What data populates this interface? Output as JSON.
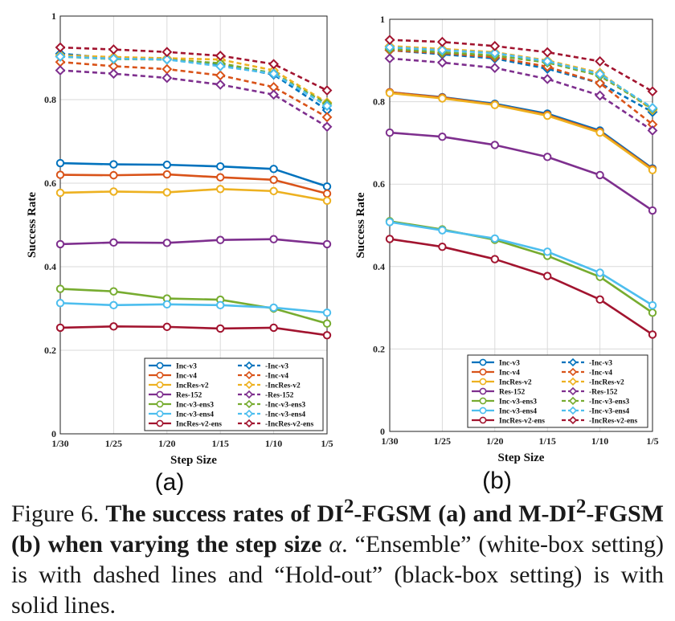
{
  "chart_data": [
    {
      "type": "line",
      "panel_label": "(a)",
      "xlabel": "Step Size",
      "ylabel": "Success Rate",
      "categories": [
        "1/30",
        "1/25",
        "1/20",
        "1/15",
        "1/10",
        "1/5"
      ],
      "ylim": [
        0,
        1
      ],
      "yticks": [
        "0",
        "0.2",
        "0.4",
        "0.6",
        "0.8",
        "1"
      ],
      "grid": true,
      "legend_position": "bottom-right",
      "series": [
        {
          "name": "Inc-v3",
          "group": "hold-out",
          "color": "#0072BD",
          "values": [
            0.648,
            0.645,
            0.644,
            0.64,
            0.634,
            0.592
          ]
        },
        {
          "name": "Inc-v4",
          "group": "hold-out",
          "color": "#D95319",
          "values": [
            0.62,
            0.619,
            0.621,
            0.614,
            0.608,
            0.575
          ]
        },
        {
          "name": "IncRes-v2",
          "group": "hold-out",
          "color": "#EDB120",
          "values": [
            0.577,
            0.58,
            0.578,
            0.586,
            0.581,
            0.558
          ]
        },
        {
          "name": "Res-152",
          "group": "hold-out",
          "color": "#7E2F8E",
          "values": [
            0.454,
            0.458,
            0.457,
            0.464,
            0.466,
            0.454
          ]
        },
        {
          "name": "Inc-v3-ens3",
          "group": "hold-out",
          "color": "#77AC30",
          "values": [
            0.347,
            0.341,
            0.324,
            0.321,
            0.3,
            0.264
          ]
        },
        {
          "name": "Inc-v3-ens4",
          "group": "hold-out",
          "color": "#4DBEEE",
          "values": [
            0.313,
            0.308,
            0.31,
            0.308,
            0.302,
            0.29
          ]
        },
        {
          "name": "IncRes-v2-ens",
          "group": "hold-out",
          "color": "#A2142F",
          "values": [
            0.254,
            0.257,
            0.256,
            0.252,
            0.254,
            0.236
          ]
        },
        {
          "name": "-Inc-v3",
          "group": "ensemble",
          "color": "#0072BD",
          "values": [
            0.91,
            0.899,
            0.896,
            0.884,
            0.86,
            0.775
          ]
        },
        {
          "name": "-Inc-v4",
          "group": "ensemble",
          "color": "#D95319",
          "values": [
            0.89,
            0.88,
            0.873,
            0.858,
            0.83,
            0.758
          ]
        },
        {
          "name": "-IncRes-v2",
          "group": "ensemble",
          "color": "#EDB120",
          "values": [
            0.906,
            0.902,
            0.899,
            0.896,
            0.87,
            0.793
          ]
        },
        {
          "name": "-Res-152",
          "group": "ensemble",
          "color": "#7E2F8E",
          "values": [
            0.87,
            0.862,
            0.852,
            0.836,
            0.812,
            0.735
          ]
        },
        {
          "name": "-Inc-v3-ens3",
          "group": "ensemble",
          "color": "#77AC30",
          "values": [
            0.903,
            0.897,
            0.896,
            0.887,
            0.863,
            0.79
          ]
        },
        {
          "name": "-Inc-v3-ens4",
          "group": "ensemble",
          "color": "#4DBEEE",
          "values": [
            0.903,
            0.898,
            0.896,
            0.88,
            0.862,
            0.785
          ]
        },
        {
          "name": "-IncRes-v2-ens",
          "group": "ensemble",
          "color": "#A2142F",
          "values": [
            0.925,
            0.92,
            0.914,
            0.905,
            0.885,
            0.822
          ]
        }
      ]
    },
    {
      "type": "line",
      "panel_label": "(b)",
      "xlabel": "Step Size",
      "ylabel": "Success Rate",
      "categories": [
        "1/30",
        "1/25",
        "1/20",
        "1/15",
        "1/10",
        "1/5"
      ],
      "ylim": [
        0,
        1
      ],
      "yticks": [
        "0",
        "0.2",
        "0.4",
        "0.6",
        "0.8",
        "1"
      ],
      "grid": true,
      "legend_position": "bottom-right",
      "series": [
        {
          "name": "Inc-v3",
          "group": "hold-out",
          "color": "#0072BD",
          "values": [
            0.823,
            0.811,
            0.795,
            0.771,
            0.73,
            0.638
          ]
        },
        {
          "name": "Inc-v4",
          "group": "hold-out",
          "color": "#D95319",
          "values": [
            0.823,
            0.81,
            0.793,
            0.768,
            0.727,
            0.636
          ]
        },
        {
          "name": "IncRes-v2",
          "group": "hold-out",
          "color": "#EDB120",
          "values": [
            0.821,
            0.808,
            0.792,
            0.766,
            0.725,
            0.634
          ]
        },
        {
          "name": "Res-152",
          "group": "hold-out",
          "color": "#7E2F8E",
          "values": [
            0.725,
            0.715,
            0.695,
            0.666,
            0.622,
            0.536
          ]
        },
        {
          "name": "Inc-v3-ens3",
          "group": "hold-out",
          "color": "#77AC30",
          "values": [
            0.51,
            0.49,
            0.465,
            0.426,
            0.375,
            0.288
          ]
        },
        {
          "name": "Inc-v3-ens4",
          "group": "hold-out",
          "color": "#4DBEEE",
          "values": [
            0.508,
            0.488,
            0.468,
            0.436,
            0.385,
            0.306
          ]
        },
        {
          "name": "IncRes-v2-ens",
          "group": "hold-out",
          "color": "#A2142F",
          "values": [
            0.467,
            0.448,
            0.418,
            0.377,
            0.32,
            0.235
          ]
        },
        {
          "name": "-Inc-v3",
          "group": "ensemble",
          "color": "#0072BD",
          "values": [
            0.925,
            0.915,
            0.905,
            0.88,
            0.845,
            0.775
          ]
        },
        {
          "name": "-Inc-v4",
          "group": "ensemble",
          "color": "#D95319",
          "values": [
            0.925,
            0.918,
            0.908,
            0.885,
            0.845,
            0.745
          ]
        },
        {
          "name": "-IncRes-v2",
          "group": "ensemble",
          "color": "#EDB120",
          "values": [
            0.935,
            0.928,
            0.92,
            0.9,
            0.87,
            0.78
          ]
        },
        {
          "name": "-Res-152",
          "group": "ensemble",
          "color": "#7E2F8E",
          "values": [
            0.905,
            0.895,
            0.882,
            0.855,
            0.815,
            0.73
          ]
        },
        {
          "name": "-Inc-v3-ens3",
          "group": "ensemble",
          "color": "#77AC30",
          "values": [
            0.928,
            0.92,
            0.912,
            0.895,
            0.863,
            0.783
          ]
        },
        {
          "name": "-Inc-v3-ens4",
          "group": "ensemble",
          "color": "#4DBEEE",
          "values": [
            0.932,
            0.925,
            0.918,
            0.898,
            0.867,
            0.785
          ]
        },
        {
          "name": "-IncRes-v2-ens",
          "group": "ensemble",
          "color": "#A2142F",
          "values": [
            0.95,
            0.945,
            0.935,
            0.92,
            0.898,
            0.825
          ]
        }
      ]
    }
  ],
  "caption": {
    "prefix": "Figure 6. ",
    "title_part1": "The success rates of DI",
    "title_sup1": "2",
    "title_part2": "-FGSM (a) and M-DI",
    "title_sup2": "2",
    "title_part3": "-FGSM (b) when varying the step size ",
    "alpha": "α",
    "period": ".",
    "rest": " “Ensemble” (white-box setting) is with dashed lines and “Hold-out” (black-box setting) is with solid lines."
  }
}
